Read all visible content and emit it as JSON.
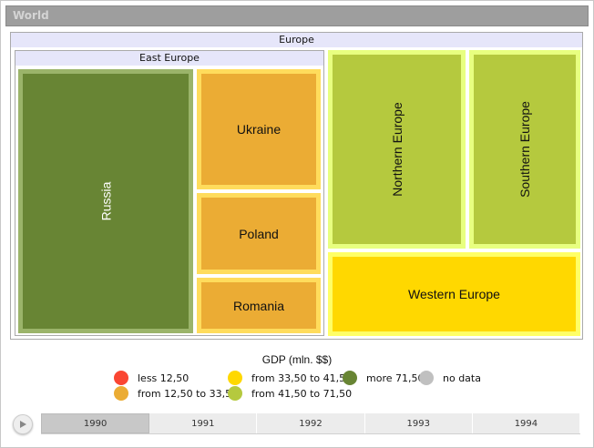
{
  "header": {
    "title": "World"
  },
  "treemap": {
    "europe": {
      "label": "Europe"
    },
    "east_europe": {
      "label": "East Europe"
    },
    "leaves": {
      "russia": {
        "label": "Russia",
        "fill": "#688534",
        "border": "#9bb46a"
      },
      "ukraine": {
        "label": "Ukraine",
        "fill": "#ebac34",
        "border": "#ffdc5c"
      },
      "poland": {
        "label": "Poland",
        "fill": "#ebac34",
        "border": "#ffdc5c"
      },
      "romania": {
        "label": "Romania",
        "fill": "#ebac34",
        "border": "#ffdc5c"
      },
      "northern": {
        "label": "Northern Europe",
        "fill": "#b5c93e",
        "border": "#e8ff80"
      },
      "southern": {
        "label": "Southern Europe",
        "fill": "#b5c93e",
        "border": "#e8ff80"
      },
      "western": {
        "label": "Western Europe",
        "fill": "#ffd800",
        "border": "#ffff66"
      }
    }
  },
  "legend": {
    "title": "GDP (mln. $$)",
    "items": [
      {
        "label": "less 12,50",
        "color": "#fa4632"
      },
      {
        "label": "from 12,50 to 33,50",
        "color": "#ebac34"
      },
      {
        "label": "from 33,50 to 41,50",
        "color": "#ffd800"
      },
      {
        "label": "from 41,50 to 71,50",
        "color": "#b5c93e"
      },
      {
        "label": "more 71,50",
        "color": "#688534"
      },
      {
        "label": "no data",
        "color": "#c0c0c0"
      }
    ]
  },
  "timeline": {
    "play_icon": "play-icon",
    "years": [
      "1990",
      "1991",
      "1992",
      "1993",
      "1994"
    ],
    "selected": "1990"
  }
}
